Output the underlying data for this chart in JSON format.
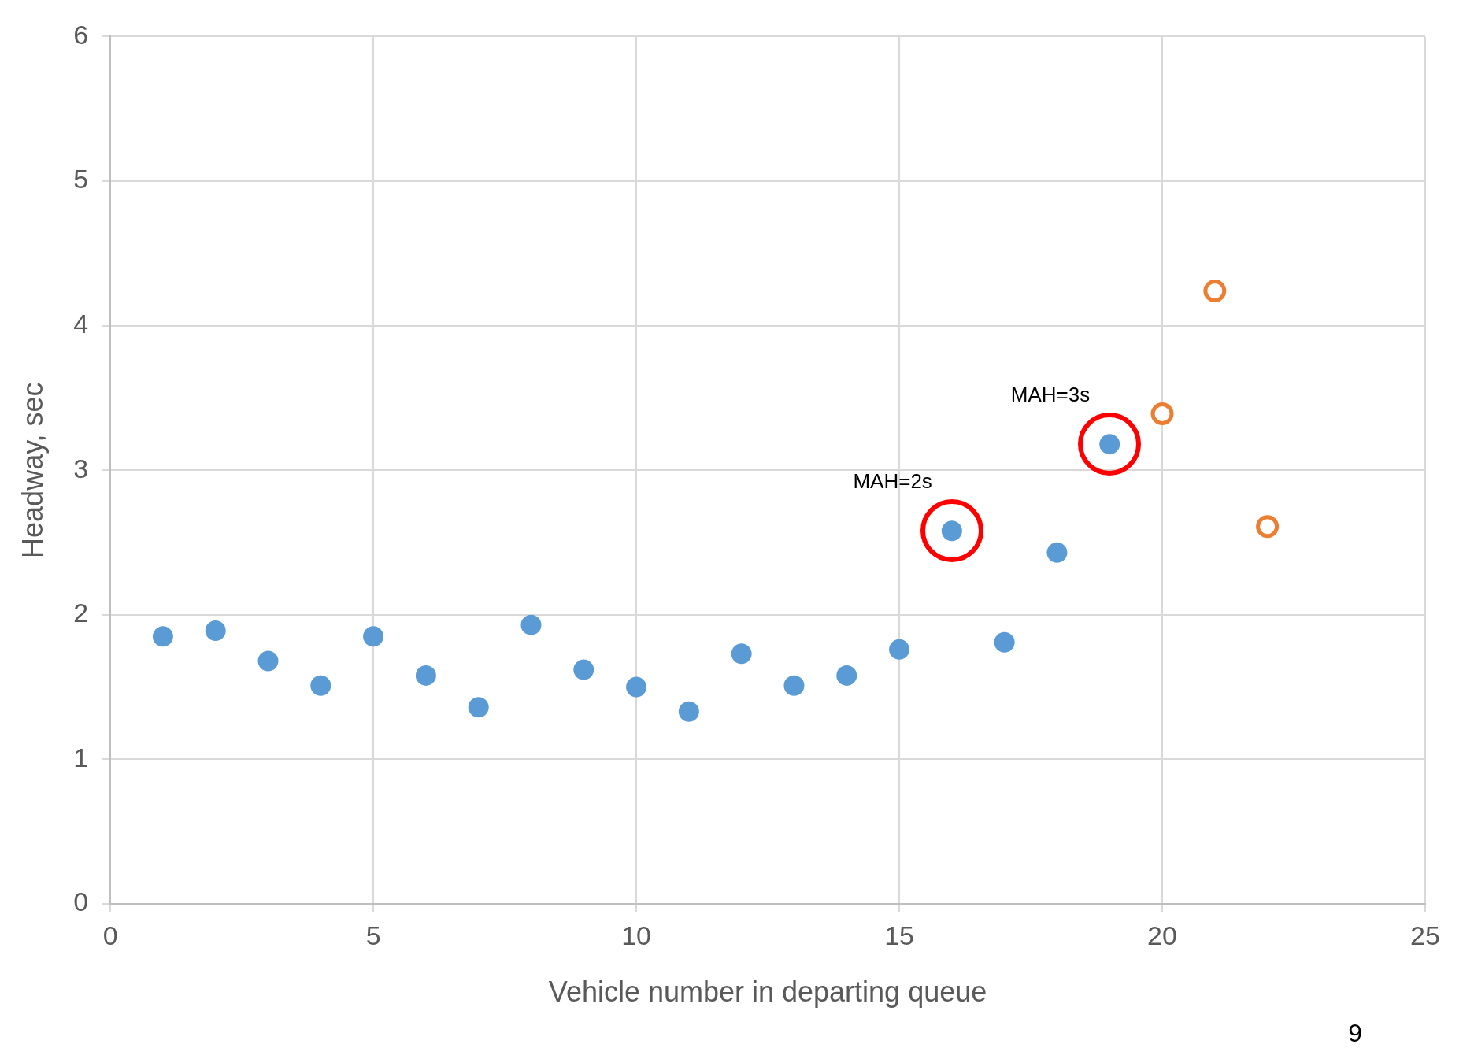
{
  "chart_data": {
    "type": "scatter",
    "xlabel": "Vehicle number in departing queue",
    "ylabel": "Headway, sec",
    "xlim": [
      0,
      25
    ],
    "xticks": [
      0,
      5,
      10,
      15,
      20,
      25
    ],
    "ylim": [
      0,
      6
    ],
    "yticks": [
      0,
      1,
      2,
      3,
      4,
      5,
      6
    ],
    "grid": true,
    "legend": false,
    "marker": "circle",
    "series": [
      {
        "color": "#5b9bd5",
        "x": [
          1,
          2,
          3,
          4,
          5,
          6,
          7,
          8,
          9,
          10,
          11,
          12,
          13,
          14,
          15,
          16,
          17,
          18,
          19
        ],
        "values": [
          1.85,
          1.89,
          1.68,
          1.51,
          1.85,
          1.58,
          1.36,
          1.93,
          1.62,
          1.5,
          1.33,
          1.73,
          1.51,
          1.58,
          1.76,
          2.58,
          1.81,
          2.43,
          3.18
        ]
      },
      {
        "color": "#ed7d31",
        "x": [
          20,
          21,
          22
        ],
        "values": [
          3.39,
          4.24,
          2.61
        ]
      }
    ],
    "annotations": [
      {
        "text": "MAH=2s",
        "x": 16,
        "y": 2.58
      },
      {
        "text": "MAH=3s",
        "x": 19,
        "y": 3.18
      },
      "9"
    ]
  }
}
